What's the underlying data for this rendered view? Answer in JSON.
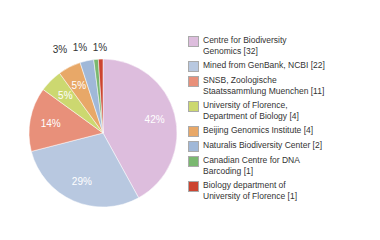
{
  "chart_data": {
    "type": "pie",
    "categories": [
      "Centre for Biodiversity\nGenomics [32]",
      "Mined from GenBank, NCBI [22]",
      "SNSB, Zoologische\nStaatssammlung Muenchen [11]",
      "University of Florence,\nDepartment of Biology [4]",
      "Beijing Genomics Institute [4]",
      "Naturalis Biodiversity Center [2]",
      "Canadian Centre for DNA\nBarcoding [1]",
      "Biology department of\nUniversity of Florence [1]"
    ],
    "values": [
      42,
      29,
      14,
      5,
      5,
      3,
      1,
      1
    ],
    "value_labels": [
      "42%",
      "29%",
      "14%",
      "5%",
      "5%",
      "3%",
      "1%",
      "1%"
    ],
    "colors": [
      "#ddbddd",
      "#b8c8e0",
      "#e8907a",
      "#ccd870",
      "#e8a868",
      "#a0b8d8",
      "#7ab870",
      "#cc4430"
    ],
    "data_labels": true,
    "legend": "right"
  }
}
